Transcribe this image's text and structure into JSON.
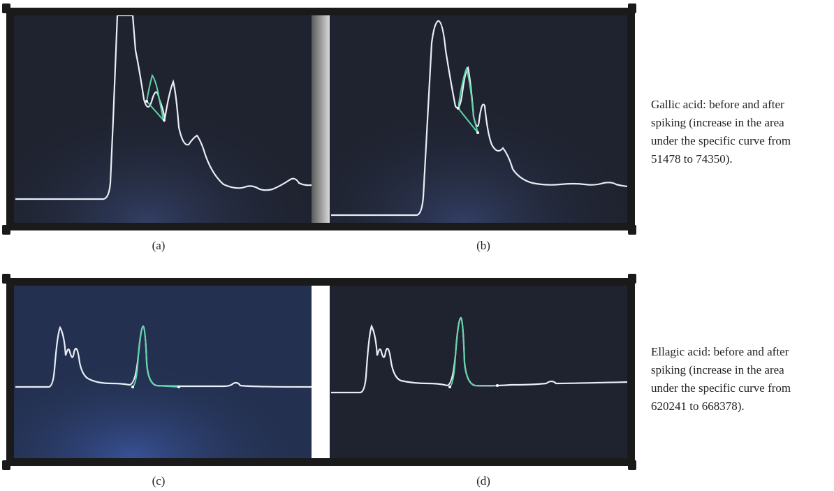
{
  "figure": {
    "panels": [
      {
        "id": "a",
        "label": "(a)"
      },
      {
        "id": "b",
        "label": "(b)"
      },
      {
        "id": "c",
        "label": "(c)"
      },
      {
        "id": "d",
        "label": "(d)"
      }
    ],
    "captions": [
      {
        "id": "gallic",
        "lines": [
          "Gallic acid: before and after",
          "spiking (increase in the area",
          "under the specific curve from",
          "51478 to 74350)."
        ]
      },
      {
        "id": "ellagic",
        "lines": [
          "Ellagic acid: before and after",
          "spiking (increase in the area",
          "under the specific curve from",
          "620241 to 668378)."
        ]
      }
    ]
  },
  "colors": {
    "frame": "#1a1a1a",
    "trace": "#e8eef5",
    "highlight": "#5fd4a8",
    "bg_dark": "#1f2330",
    "bg_blue": "#23304f"
  }
}
